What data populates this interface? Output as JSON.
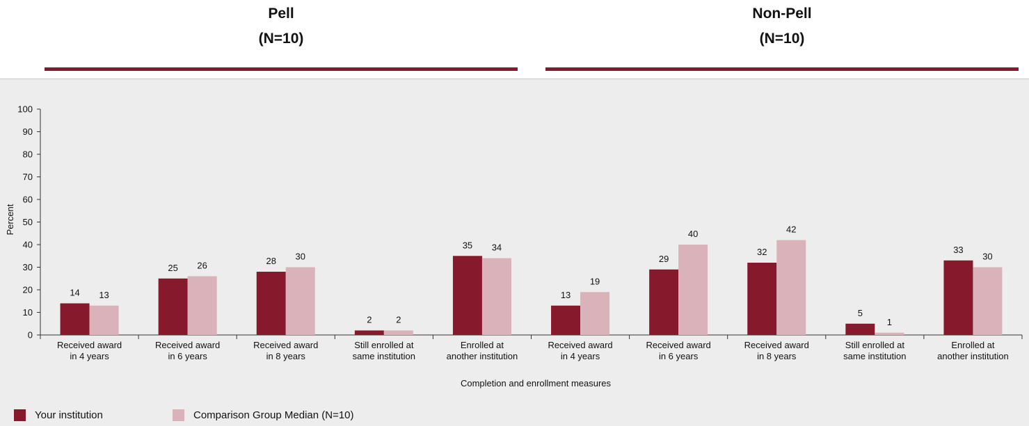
{
  "groups": [
    {
      "title": "Pell",
      "n": "(N=10)"
    },
    {
      "title": "Non-Pell",
      "n": "(N=10)"
    }
  ],
  "colors": {
    "your_institution": "#861a2c",
    "comparison": "#d9b3b9",
    "accent_line": "#7f1d2e"
  },
  "chart_data": {
    "type": "bar",
    "title": "",
    "xlabel": "Completion and enrollment measures",
    "ylabel": "Percent",
    "ylim": [
      0,
      100
    ],
    "yticks": [
      0,
      10,
      20,
      30,
      40,
      50,
      60,
      70,
      80,
      90,
      100
    ],
    "grid": false,
    "legend_position": "bottom-left",
    "categories": [
      [
        "Received award",
        "in 4 years"
      ],
      [
        "Received award",
        "in 6 years"
      ],
      [
        "Received award",
        "in 8 years"
      ],
      [
        "Still enrolled at",
        "same institution"
      ],
      [
        "Enrolled at",
        "another institution"
      ],
      [
        "Received award",
        "in 4 years"
      ],
      [
        "Received award",
        "in 6 years"
      ],
      [
        "Received award",
        "in 8 years"
      ],
      [
        "Still enrolled at",
        "same institution"
      ],
      [
        "Enrolled at",
        "another institution"
      ]
    ],
    "series": [
      {
        "name": "Your institution",
        "values": [
          14,
          25,
          28,
          2,
          35,
          13,
          29,
          32,
          5,
          33
        ]
      },
      {
        "name": "Comparison Group Median (N=10)",
        "values": [
          13,
          26,
          30,
          2,
          34,
          19,
          40,
          42,
          1,
          30
        ]
      }
    ]
  }
}
